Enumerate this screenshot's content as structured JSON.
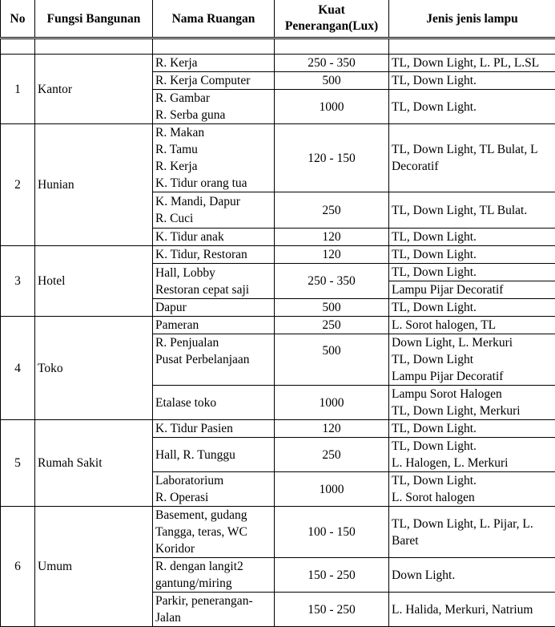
{
  "headers": {
    "no": "No",
    "fungsi": "Fungsi Bangunan",
    "nama": "Nama Ruangan",
    "lux": "Kuat\nPenerangan(Lux)",
    "lampu": "Jenis jenis lampu"
  },
  "groups": [
    {
      "no": "1",
      "fungsi": "Kantor",
      "rooms": [
        {
          "nama": "R. Kerja",
          "lux": "250 - 350",
          "lampu": "TL, Down Light, L. PL, L.SL"
        },
        {
          "nama": "R. Kerja Computer",
          "lux": "500",
          "lampu": "TL, Down Light."
        },
        {
          "nama": "R. Gambar\nR. Serba guna",
          "lux": "1000",
          "lampu": "TL, Down Light."
        }
      ]
    },
    {
      "no": "2",
      "fungsi": "Hunian",
      "rooms": [
        {
          "nama": "R. Makan\nR. Tamu\nR. Kerja\nK. Tidur orang tua",
          "lux": "120 - 150",
          "lampu": "TL, Down Light, TL Bulat, L Decoratif"
        },
        {
          "nama": "K. Mandi, Dapur\nR. Cuci",
          "lux": "250",
          "lampu": "TL, Down Light, TL Bulat."
        },
        {
          "nama": "K. Tidur anak",
          "lux": "120",
          "lampu": "TL, Down Light."
        }
      ]
    },
    {
      "no": "3",
      "fungsi": "Hotel",
      "rooms": [
        {
          "nama": "K. Tidur, Restoran",
          "lux": "120",
          "lampu": "TL, Down Light."
        },
        {
          "nama": "Hall, Lobby\nRestoran cepat saji",
          "lux": "250 - 350",
          "lampu": [
            "TL, Down Light.",
            "Lampu Pijar Decoratif"
          ]
        },
        {
          "nama": "Dapur",
          "lux": "500",
          "lampu": "TL, Down Light."
        }
      ]
    },
    {
      "no": "4",
      "fungsi": "Toko",
      "rooms": [
        {
          "nama": "Pameran",
          "lux": "250",
          "lampu": "L. Sorot halogen, TL"
        },
        {
          "nama": "R. Penjualan\nPusat Perbelanjaan",
          "lux": "500",
          "lampu": "Down Light, L. Merkuri\nTL, Down Light\nLampu Pijar Decoratif"
        },
        {
          "nama": "Etalase toko",
          "lux": "1000",
          "lampu": "Lampu Sorot Halogen\nTL, Down Light, Merkuri"
        }
      ]
    },
    {
      "no": "5",
      "fungsi": "Rumah Sakit",
      "rooms": [
        {
          "nama": "K. Tidur Pasien",
          "lux": "120",
          "lampu": "TL, Down Light."
        },
        {
          "nama": "Hall, R. Tunggu",
          "lux": "250",
          "lampu": "TL, Down Light.\nL. Halogen, L. Merkuri"
        },
        {
          "nama": "Laboratorium\nR. Operasi",
          "lux": "1000",
          "lampu": "TL, Down Light.\nL. Sorot halogen"
        }
      ]
    },
    {
      "no": "6",
      "fungsi": "Umum",
      "rooms": [
        {
          "nama": "Basement, gudang\nTangga, teras, WC\nKoridor",
          "lux": "100 - 150",
          "lampu": "TL, Down Light, L. Pijar, L. Baret"
        },
        {
          "nama": "R. dengan langit2\ngantung/miring",
          "lux": "150 - 250",
          "lampu": "Down Light."
        },
        {
          "nama": "Parkir, penerangan-\nJalan",
          "lux": "150 - 250",
          "lampu": "L. Halida, Merkuri, Natrium"
        }
      ]
    }
  ]
}
